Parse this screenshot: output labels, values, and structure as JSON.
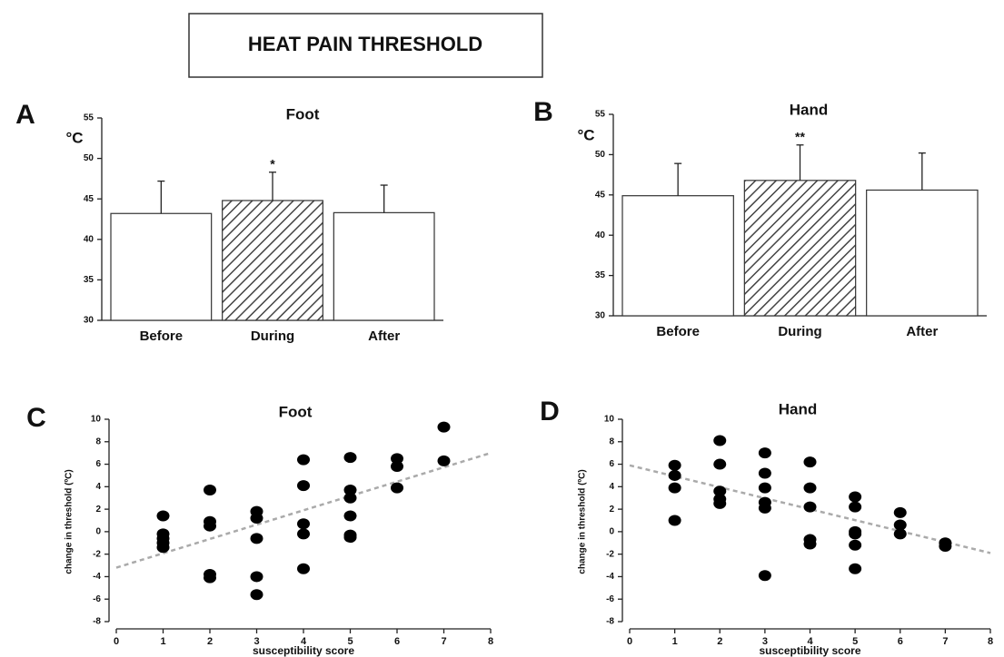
{
  "title": "HEAT PAIN THRESHOLD",
  "chart_data": [
    {
      "type": "bar",
      "panel": "A",
      "title": "Foot",
      "y_label": "°C",
      "categories": [
        "Before",
        "During",
        "After"
      ],
      "values": [
        43.2,
        44.8,
        43.3
      ],
      "errors": [
        4.0,
        3.5,
        3.4
      ],
      "hatch": [
        false,
        true,
        false
      ],
      "color": "#ffffff",
      "annotations": [
        {
          "x": "During",
          "text": "*"
        }
      ],
      "ylim": [
        30,
        55
      ],
      "yticks": [
        30,
        35,
        40,
        45,
        50,
        55
      ]
    },
    {
      "type": "bar",
      "panel": "B",
      "title": "Hand",
      "y_label": "°C",
      "categories": [
        "Before",
        "During",
        "After"
      ],
      "values": [
        44.9,
        46.8,
        45.6
      ],
      "errors": [
        4.0,
        4.4,
        4.6
      ],
      "hatch": [
        false,
        true,
        false
      ],
      "color": "#ffffff",
      "annotations": [
        {
          "x": "During",
          "text": "**"
        }
      ],
      "ylim": [
        30,
        55
      ],
      "yticks": [
        30,
        35,
        40,
        45,
        50,
        55
      ]
    },
    {
      "type": "scatter",
      "panel": "C",
      "title": "Foot",
      "x_label": "susceptibility score",
      "y_label": "change in threshold (ºC)",
      "x": [
        1,
        1,
        1,
        1,
        1,
        2,
        2,
        2,
        2,
        2,
        3,
        3,
        3,
        3,
        3,
        4,
        4,
        4,
        4,
        4,
        5,
        5,
        5,
        5,
        5,
        5,
        6,
        6,
        6,
        7,
        7
      ],
      "values": [
        1.4,
        -0.2,
        -0.6,
        -1.0,
        -1.4,
        3.7,
        0.9,
        0.5,
        -3.8,
        -4.1,
        1.8,
        1.2,
        -0.6,
        -4.0,
        -5.6,
        6.4,
        4.1,
        0.7,
        -0.2,
        -3.3,
        6.6,
        3.7,
        3.0,
        1.4,
        -0.3,
        -0.5,
        6.5,
        5.8,
        3.9,
        9.3,
        6.3
      ],
      "color": "#000000",
      "trendline": {
        "x": [
          0,
          8
        ],
        "y": [
          -3.2,
          7.0
        ],
        "color": "#aaaaaa"
      },
      "xlim": [
        0,
        8
      ],
      "xticks": [
        0,
        1,
        2,
        3,
        4,
        5,
        6,
        7,
        8
      ],
      "ylim": [
        -8,
        10
      ],
      "yticks": [
        -8,
        -6,
        -4,
        -2,
        0,
        2,
        4,
        6,
        8,
        10
      ]
    },
    {
      "type": "scatter",
      "panel": "D",
      "title": "Hand",
      "x_label": "susceptibility score",
      "y_label": "change in threshold (ºC)",
      "x": [
        1,
        1,
        1,
        1,
        2,
        2,
        2,
        2,
        2,
        3,
        3,
        3,
        3,
        3,
        3,
        4,
        4,
        4,
        4,
        4,
        5,
        5,
        5,
        5,
        5,
        5,
        6,
        6,
        6,
        7,
        7
      ],
      "values": [
        5.9,
        5.0,
        3.9,
        1.0,
        8.1,
        6.0,
        3.6,
        2.9,
        2.5,
        7.0,
        5.2,
        3.9,
        2.6,
        2.1,
        -3.9,
        6.2,
        3.9,
        2.2,
        -0.7,
        -1.1,
        3.1,
        2.2,
        0.0,
        -0.2,
        -1.2,
        -3.3,
        1.7,
        0.6,
        -0.2,
        -1.0,
        -1.3
      ],
      "color": "#000000",
      "trendline": {
        "x": [
          0,
          8
        ],
        "y": [
          5.9,
          -1.9
        ],
        "color": "#aaaaaa"
      },
      "xlim": [
        0,
        8
      ],
      "xticks": [
        0,
        1,
        2,
        3,
        4,
        5,
        6,
        7,
        8
      ],
      "ylim": [
        -8,
        10
      ],
      "yticks": [
        -8,
        -6,
        -4,
        -2,
        0,
        2,
        4,
        6,
        8,
        10
      ]
    }
  ]
}
